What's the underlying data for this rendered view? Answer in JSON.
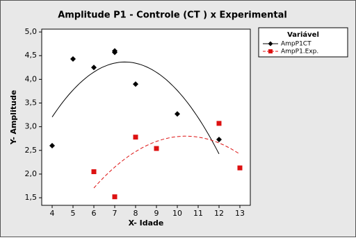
{
  "chart_data": {
    "type": "scatter",
    "title": "Amplitude P1 - Controle (CT ) x Experimental",
    "xlabel": "X-  Idade",
    "ylabel": "Y-  Amplitude",
    "legend_title": "Variável",
    "xlim": [
      3.5,
      13.5
    ],
    "xticks": [
      4,
      5,
      6,
      7,
      8,
      9,
      10,
      11,
      12,
      13
    ],
    "ylim": [
      1.34,
      5.06
    ],
    "yticks": [
      {
        "value": 1.5,
        "label": "1,5"
      },
      {
        "value": 2.0,
        "label": "2,0"
      },
      {
        "value": 2.5,
        "label": "2,5"
      },
      {
        "value": 3.0,
        "label": "3,0"
      },
      {
        "value": 3.5,
        "label": "3,5"
      },
      {
        "value": 4.0,
        "label": "4,0"
      },
      {
        "value": 4.5,
        "label": "4,5"
      },
      {
        "value": 5.0,
        "label": "5,0"
      }
    ],
    "fit": "quadratic",
    "series": [
      {
        "name": "AmpP1CT",
        "color": "#000000",
        "marker": "diamond",
        "dashed": false,
        "x": [
          4,
          5,
          6,
          7,
          7,
          8,
          10,
          12
        ],
        "values": [
          2.6,
          4.43,
          4.25,
          4.57,
          4.6,
          3.9,
          3.27,
          2.73
        ]
      },
      {
        "name": "AmpP1.Exp.",
        "color": "#dd1111",
        "marker": "square",
        "dashed": true,
        "x": [
          6,
          7,
          8,
          9,
          12,
          13
        ],
        "values": [
          2.05,
          1.52,
          2.78,
          2.54,
          3.07,
          2.13
        ]
      }
    ]
  }
}
